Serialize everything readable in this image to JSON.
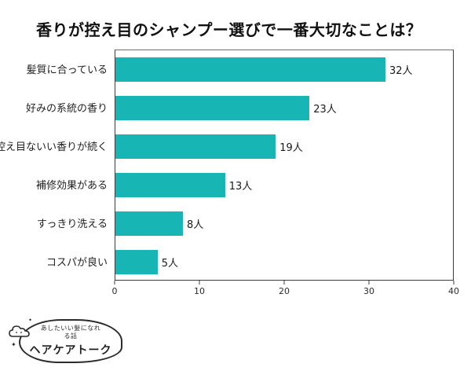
{
  "title": "香りが控え目のシャンプー選びで一番大切なことは？",
  "chart_data": {
    "type": "bar",
    "orientation": "horizontal",
    "title": "香りが控え目のシャンプー選びで一番大切なことは？",
    "categories": [
      "髪質に合っている",
      "好みの系統の香り",
      "控え目ないい香りが続く",
      "補修効果がある",
      "すっきり洗える",
      "コスパが良い"
    ],
    "values": [
      32,
      23,
      19,
      13,
      8,
      5
    ],
    "value_suffix": "人",
    "xlim": [
      0,
      40
    ],
    "x_ticks": [
      0,
      10,
      20,
      30,
      40
    ],
    "bar_color": "#17b6b4",
    "legend": "none",
    "grid": "off"
  },
  "logo": {
    "tagline": "あしたいい髪になれる話",
    "name": "ヘアケアトーク",
    "cloud_icon": "cloud",
    "sparkle_icon": "✦"
  }
}
